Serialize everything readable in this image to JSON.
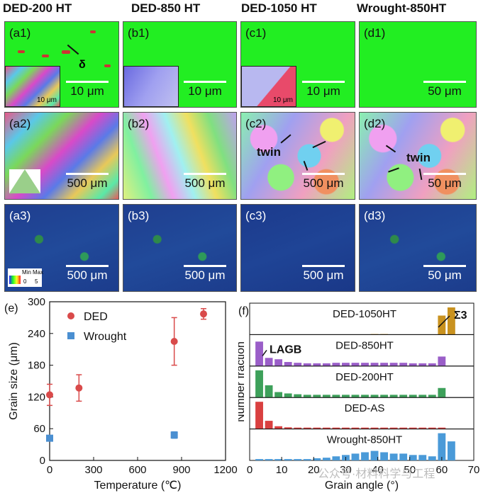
{
  "headers": [
    "DED-200 HT",
    "DED-850 HT",
    "DED-1050 HT",
    "Wrought-850HT"
  ],
  "row1": [
    {
      "label": "(a1)",
      "scale": "10 μm",
      "inset_scale": "10 μm",
      "delta": "δ"
    },
    {
      "label": "(b1)",
      "scale": "10 μm"
    },
    {
      "label": "(c1)",
      "scale": "10 μm",
      "inset_scale": "10 μm"
    },
    {
      "label": "(d1)",
      "scale": "50 μm"
    }
  ],
  "row2": [
    {
      "label": "(a2)",
      "scale": "500 μm"
    },
    {
      "label": "(b2)",
      "scale": "500 μm"
    },
    {
      "label": "(c2)",
      "scale": "500 μm",
      "twin": "twin"
    },
    {
      "label": "(d2)",
      "scale": "50 μm",
      "twin": "twin"
    }
  ],
  "row3": [
    {
      "label": "(a3)",
      "scale": "500 μm",
      "legend": {
        "min": "Min",
        "max": "Max",
        "min_val": "0",
        "max_val": "5"
      }
    },
    {
      "label": "(b3)",
      "scale": "500 μm"
    },
    {
      "label": "(c3)",
      "scale": "500 μm"
    },
    {
      "label": "(d3)",
      "scale": "50 μm"
    }
  ],
  "chart_data": [
    {
      "panel": "(e)",
      "type": "scatter",
      "xlabel": "Temperature (℃)",
      "ylabel": "Grain size (μm)",
      "xlim": [
        0,
        1200
      ],
      "ylim": [
        0,
        300
      ],
      "xticks": [
        0,
        300,
        600,
        900,
        1200
      ],
      "yticks": [
        0,
        60,
        120,
        180,
        240,
        300
      ],
      "legend_position": "top-left",
      "series": [
        {
          "name": "DED",
          "color": "#d94a4a",
          "marker": "circle",
          "x": [
            0,
            200,
            850,
            1050
          ],
          "y": [
            124,
            137,
            225,
            277
          ],
          "err": [
            20,
            25,
            45,
            10
          ]
        },
        {
          "name": "Wrought",
          "color": "#4a8fd1",
          "marker": "square",
          "x": [
            0,
            850
          ],
          "y": [
            42,
            48
          ],
          "err": [
            5,
            6
          ]
        }
      ]
    },
    {
      "panel": "(f)",
      "type": "bar",
      "xlabel": "Grain angle (°)",
      "ylabel": "Number fraction",
      "xlim": [
        0,
        70
      ],
      "xticks": [
        0,
        10,
        20,
        30,
        40,
        50,
        60,
        70
      ],
      "annotations": [
        "Σ3",
        "LAGB"
      ],
      "bins": [
        3,
        6,
        9,
        12,
        15,
        18,
        21,
        24,
        27,
        30,
        33,
        36,
        39,
        42,
        45,
        48,
        51,
        54,
        57,
        60,
        63
      ],
      "series": [
        {
          "name": "DED-1050HT",
          "color": "#c9921f",
          "values": [
            0,
            0,
            0,
            0,
            0,
            0,
            0,
            0,
            0,
            0,
            0,
            0,
            0.02,
            0.02,
            0,
            0,
            0,
            0,
            0,
            0.7,
            1.0
          ]
        },
        {
          "name": "DED-850HT",
          "color": "#9a5ec8",
          "values": [
            0.9,
            0.3,
            0.25,
            0.15,
            0.12,
            0.1,
            0.1,
            0.1,
            0.12,
            0.12,
            0.12,
            0.12,
            0.12,
            0.12,
            0.12,
            0.12,
            0.1,
            0.1,
            0.1,
            0.35,
            0
          ]
        },
        {
          "name": "DED-200HT",
          "color": "#3da05a",
          "values": [
            1.0,
            0.45,
            0.2,
            0.15,
            0.12,
            0.1,
            0.1,
            0.1,
            0.1,
            0.1,
            0.1,
            0.1,
            0.1,
            0.1,
            0.1,
            0.1,
            0.1,
            0.1,
            0.1,
            0.35,
            0
          ]
        },
        {
          "name": "DED-AS",
          "color": "#d94040",
          "values": [
            1.0,
            0.3,
            0.1,
            0.06,
            0.05,
            0.05,
            0.05,
            0.05,
            0.05,
            0.05,
            0.05,
            0.05,
            0.05,
            0.05,
            0.05,
            0.05,
            0.05,
            0.05,
            0.05,
            0.05,
            0
          ]
        },
        {
          "name": "Wrought-850HT",
          "color": "#4a9ad8",
          "values": [
            0.05,
            0.05,
            0.05,
            0.05,
            0.05,
            0.05,
            0.08,
            0.1,
            0.15,
            0.2,
            0.25,
            0.3,
            0.35,
            0.3,
            0.25,
            0.25,
            0.2,
            0.2,
            0.15,
            1.0,
            0.7
          ]
        }
      ]
    }
  ],
  "watermark": "公众号·材料科学与工程"
}
